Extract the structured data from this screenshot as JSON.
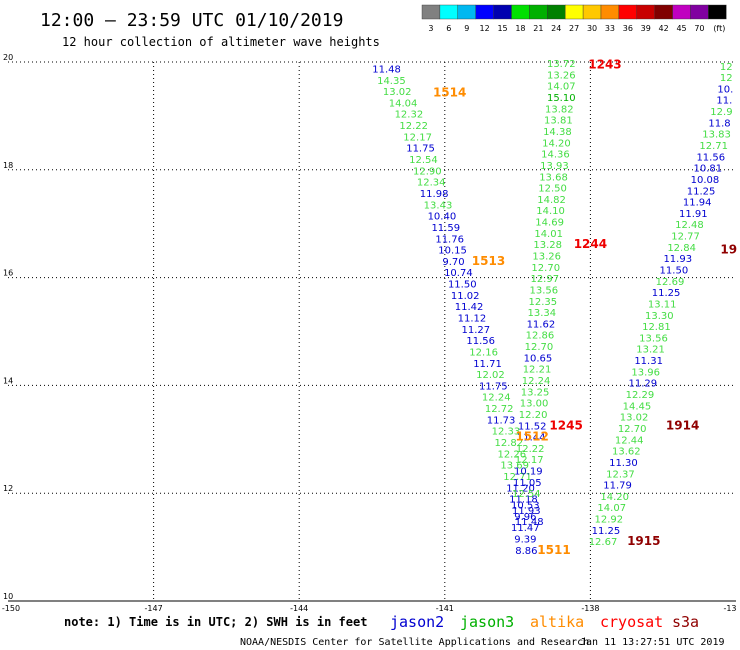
{
  "header": {
    "title": "12:00 – 23:59 UTC 01/10/2019",
    "subtitle": "12 hour collection of altimeter wave heights"
  },
  "legend": {
    "colors": [
      "#808080",
      "#00ffff",
      "#00b8f0",
      "#0000ff",
      "#0000b0",
      "#00e000",
      "#00b000",
      "#008000",
      "#ffff00",
      "#ffc800",
      "#ff8c00",
      "#ff0000",
      "#c80000",
      "#800000",
      "#c000c0",
      "#8000a0",
      "#000000"
    ],
    "labels": [
      "3",
      "6",
      "9",
      "12",
      "15",
      "18",
      "21",
      "24",
      "27",
      "30",
      "33",
      "36",
      "39",
      "42",
      "45",
      "70",
      "(ft)"
    ]
  },
  "axes": {
    "lon_labels": [
      "-150",
      "-147",
      "-144",
      "-141",
      "-138",
      "-13"
    ],
    "lat_labels": [
      "20",
      "18",
      "16",
      "14",
      "12",
      "10"
    ],
    "lon_min": -150,
    "lon_max": -135,
    "lat_min": 10,
    "lat_max": 20
  },
  "satellite_colors": {
    "jason2": "#0000d0",
    "jason3": "#00b000",
    "altika": "#ff8c00",
    "cryosat": "#ff0000",
    "s3a": "#900000",
    "light": "#44dd44",
    "pass_red": "#ee0000"
  },
  "observations": [
    {
      "text": "11.48",
      "lat": 19.88,
      "lon": -142.2,
      "c": "jason2"
    },
    {
      "text": "14.35",
      "lat": 19.67,
      "lon": -142.1,
      "c": "light"
    },
    {
      "text": "13.02",
      "lat": 19.46,
      "lon": -141.98,
      "c": "light"
    },
    {
      "text": "14.04",
      "lat": 19.25,
      "lon": -141.86,
      "c": "light"
    },
    {
      "text": "12.32",
      "lat": 19.04,
      "lon": -141.74,
      "c": "light"
    },
    {
      "text": "12.22",
      "lat": 18.83,
      "lon": -141.64,
      "c": "light"
    },
    {
      "text": "12.17",
      "lat": 18.62,
      "lon": -141.56,
      "c": "light"
    },
    {
      "text": "11.75",
      "lat": 18.41,
      "lon": -141.5,
      "c": "jason2"
    },
    {
      "text": "12.54",
      "lat": 18.2,
      "lon": -141.44,
      "c": "light"
    },
    {
      "text": "12.90",
      "lat": 17.99,
      "lon": -141.36,
      "c": "light"
    },
    {
      "text": "12.34",
      "lat": 17.78,
      "lon": -141.28,
      "c": "light"
    },
    {
      "text": "11.98",
      "lat": 17.57,
      "lon": -141.22,
      "c": "jason2"
    },
    {
      "text": "13.43",
      "lat": 17.36,
      "lon": -141.14,
      "c": "light"
    },
    {
      "text": "10.40",
      "lat": 17.15,
      "lon": -141.06,
      "c": "jason2"
    },
    {
      "text": "11.59",
      "lat": 16.94,
      "lon": -140.98,
      "c": "jason2"
    },
    {
      "text": "11.76",
      "lat": 16.73,
      "lon": -140.9,
      "c": "jason2"
    },
    {
      "text": "10.15",
      "lat": 16.52,
      "lon": -140.84,
      "c": "jason2"
    },
    {
      "text": "9.70",
      "lat": 16.31,
      "lon": -140.82,
      "c": "jason2"
    },
    {
      "text": "10.74",
      "lat": 16.1,
      "lon": -140.72,
      "c": "jason2"
    },
    {
      "text": "11.50",
      "lat": 15.89,
      "lon": -140.64,
      "c": "jason2"
    },
    {
      "text": "11.02",
      "lat": 15.68,
      "lon": -140.58,
      "c": "jason2"
    },
    {
      "text": "11.42",
      "lat": 15.47,
      "lon": -140.5,
      "c": "jason2"
    },
    {
      "text": "11.12",
      "lat": 15.26,
      "lon": -140.44,
      "c": "jason2"
    },
    {
      "text": "11.27",
      "lat": 15.05,
      "lon": -140.36,
      "c": "jason2"
    },
    {
      "text": "11.56",
      "lat": 14.84,
      "lon": -140.26,
      "c": "jason2"
    },
    {
      "text": "12.16",
      "lat": 14.63,
      "lon": -140.2,
      "c": "light"
    },
    {
      "text": "11.71",
      "lat": 14.42,
      "lon": -140.12,
      "c": "jason2"
    },
    {
      "text": "12.02",
      "lat": 14.21,
      "lon": -140.06,
      "c": "light"
    },
    {
      "text": "11.75",
      "lat": 14.0,
      "lon": -140.0,
      "c": "jason2"
    },
    {
      "text": "12.24",
      "lat": 13.79,
      "lon": -139.94,
      "c": "light"
    },
    {
      "text": "12.72",
      "lat": 13.58,
      "lon": -139.88,
      "c": "light"
    },
    {
      "text": "11.73",
      "lat": 13.37,
      "lon": -139.84,
      "c": "jason2"
    },
    {
      "text": "12.33",
      "lat": 13.16,
      "lon": -139.74,
      "c": "light"
    },
    {
      "text": "12.82",
      "lat": 12.95,
      "lon": -139.68,
      "c": "light"
    },
    {
      "text": "12.26",
      "lat": 12.74,
      "lon": -139.62,
      "c": "light"
    },
    {
      "text": "13.69",
      "lat": 12.53,
      "lon": -139.56,
      "c": "light"
    },
    {
      "text": "12.71",
      "lat": 12.32,
      "lon": -139.5,
      "c": "light"
    },
    {
      "text": "11.20",
      "lat": 12.11,
      "lon": -139.44,
      "c": "jason2"
    },
    {
      "text": "11.18",
      "lat": 11.9,
      "lon": -139.38,
      "c": "jason2"
    },
    {
      "text": "11.93",
      "lat": 11.69,
      "lon": -139.32,
      "c": "jason2"
    },
    {
      "text": "11.48",
      "lat": 11.48,
      "lon": -139.26,
      "c": "jason2"
    },
    {
      "text": "13.72",
      "lat": 19.98,
      "lon": -138.6,
      "c": "light"
    },
    {
      "text": "13.26",
      "lat": 19.77,
      "lon": -138.6,
      "c": "light"
    },
    {
      "text": "14.07",
      "lat": 19.56,
      "lon": -138.6,
      "c": "light"
    },
    {
      "text": "15.10",
      "lat": 19.35,
      "lon": -138.6,
      "c": "jason3"
    },
    {
      "text": "13.82",
      "lat": 19.14,
      "lon": -138.64,
      "c": "light"
    },
    {
      "text": "13.81",
      "lat": 18.93,
      "lon": -138.66,
      "c": "light"
    },
    {
      "text": "14.38",
      "lat": 18.72,
      "lon": -138.68,
      "c": "light"
    },
    {
      "text": "14.20",
      "lat": 18.51,
      "lon": -138.7,
      "c": "light"
    },
    {
      "text": "14.36",
      "lat": 18.3,
      "lon": -138.72,
      "c": "light"
    },
    {
      "text": "13.93",
      "lat": 18.09,
      "lon": -138.74,
      "c": "light"
    },
    {
      "text": "13.68",
      "lat": 17.88,
      "lon": -138.76,
      "c": "light"
    },
    {
      "text": "12.50",
      "lat": 17.67,
      "lon": -138.78,
      "c": "light"
    },
    {
      "text": "14.82",
      "lat": 17.46,
      "lon": -138.8,
      "c": "light"
    },
    {
      "text": "14.10",
      "lat": 17.25,
      "lon": -138.82,
      "c": "light"
    },
    {
      "text": "14.69",
      "lat": 17.04,
      "lon": -138.84,
      "c": "light"
    },
    {
      "text": "14.01",
      "lat": 16.83,
      "lon": -138.86,
      "c": "light"
    },
    {
      "text": "13.28",
      "lat": 16.62,
      "lon": -138.88,
      "c": "light"
    },
    {
      "text": "13.26",
      "lat": 16.41,
      "lon": -138.9,
      "c": "light"
    },
    {
      "text": "12.70",
      "lat": 16.2,
      "lon": -138.92,
      "c": "light"
    },
    {
      "text": "12.97",
      "lat": 15.99,
      "lon": -138.94,
      "c": "light"
    },
    {
      "text": "13.56",
      "lat": 15.78,
      "lon": -138.96,
      "c": "light"
    },
    {
      "text": "12.35",
      "lat": 15.57,
      "lon": -138.98,
      "c": "light"
    },
    {
      "text": "13.34",
      "lat": 15.36,
      "lon": -139.0,
      "c": "light"
    },
    {
      "text": "11.62",
      "lat": 15.15,
      "lon": -139.02,
      "c": "jason2"
    },
    {
      "text": "12.86",
      "lat": 14.94,
      "lon": -139.04,
      "c": "light"
    },
    {
      "text": "12.70",
      "lat": 14.73,
      "lon": -139.06,
      "c": "light"
    },
    {
      "text": "10.65",
      "lat": 14.52,
      "lon": -139.08,
      "c": "jason2"
    },
    {
      "text": "12.21",
      "lat": 14.31,
      "lon": -139.1,
      "c": "light"
    },
    {
      "text": "12.24",
      "lat": 14.1,
      "lon": -139.12,
      "c": "light"
    },
    {
      "text": "13.25",
      "lat": 13.89,
      "lon": -139.14,
      "c": "light"
    },
    {
      "text": "13.00",
      "lat": 13.68,
      "lon": -139.16,
      "c": "light"
    },
    {
      "text": "12.20",
      "lat": 13.47,
      "lon": -139.18,
      "c": "light"
    },
    {
      "text": "11.52",
      "lat": 13.26,
      "lon": -139.2,
      "c": "jason2"
    },
    {
      "text": "11.44",
      "lat": 13.05,
      "lon": -139.22,
      "c": "jason2"
    },
    {
      "text": "12.22",
      "lat": 12.84,
      "lon": -139.24,
      "c": "light"
    },
    {
      "text": "12.17",
      "lat": 12.63,
      "lon": -139.26,
      "c": "light"
    },
    {
      "text": "10.19",
      "lat": 12.42,
      "lon": -139.28,
      "c": "jason2"
    },
    {
      "text": "11.05",
      "lat": 12.21,
      "lon": -139.3,
      "c": "jason2"
    },
    {
      "text": "12.54",
      "lat": 12.0,
      "lon": -139.32,
      "c": "light"
    },
    {
      "text": "10.53",
      "lat": 11.79,
      "lon": -139.34,
      "c": "jason2"
    },
    {
      "text": "9.96",
      "lat": 11.58,
      "lon": -139.34,
      "c": "jason2"
    },
    {
      "text": "11.47",
      "lat": 11.37,
      "lon": -139.34,
      "c": "jason2"
    },
    {
      "text": "9.39",
      "lat": 11.16,
      "lon": -139.34,
      "c": "jason2"
    },
    {
      "text": "8.86",
      "lat": 10.95,
      "lon": -139.32,
      "c": "jason2"
    },
    {
      "text": "12",
      "lat": 19.93,
      "lon": -135.2,
      "c": "light"
    },
    {
      "text": "12",
      "lat": 19.72,
      "lon": -135.2,
      "c": "light"
    },
    {
      "text": "10.",
      "lat": 19.51,
      "lon": -135.22,
      "c": "jason2"
    },
    {
      "text": "11.",
      "lat": 19.3,
      "lon": -135.24,
      "c": "jason2"
    },
    {
      "text": "12.9",
      "lat": 19.09,
      "lon": -135.3,
      "c": "light"
    },
    {
      "text": "11.8",
      "lat": 18.88,
      "lon": -135.34,
      "c": "jason2"
    },
    {
      "text": "13.83",
      "lat": 18.67,
      "lon": -135.4,
      "c": "light"
    },
    {
      "text": "12.71",
      "lat": 18.46,
      "lon": -135.46,
      "c": "light"
    },
    {
      "text": "11.56",
      "lat": 18.25,
      "lon": -135.52,
      "c": "jason2"
    },
    {
      "text": "10.81",
      "lat": 18.04,
      "lon": -135.58,
      "c": "jason2"
    },
    {
      "text": "10.08",
      "lat": 17.83,
      "lon": -135.64,
      "c": "jason2"
    },
    {
      "text": "11.25",
      "lat": 17.62,
      "lon": -135.72,
      "c": "jason2"
    },
    {
      "text": "11.94",
      "lat": 17.41,
      "lon": -135.8,
      "c": "jason2"
    },
    {
      "text": "11.91",
      "lat": 17.2,
      "lon": -135.88,
      "c": "jason2"
    },
    {
      "text": "12.48",
      "lat": 16.99,
      "lon": -135.96,
      "c": "light"
    },
    {
      "text": "12.77",
      "lat": 16.78,
      "lon": -136.04,
      "c": "light"
    },
    {
      "text": "12.84",
      "lat": 16.57,
      "lon": -136.12,
      "c": "light"
    },
    {
      "text": "11.93",
      "lat": 16.36,
      "lon": -136.2,
      "c": "jason2"
    },
    {
      "text": "11.50",
      "lat": 16.15,
      "lon": -136.28,
      "c": "jason2"
    },
    {
      "text": "12.69",
      "lat": 15.94,
      "lon": -136.36,
      "c": "light"
    },
    {
      "text": "11.25",
      "lat": 15.73,
      "lon": -136.44,
      "c": "jason2"
    },
    {
      "text": "13.11",
      "lat": 15.52,
      "lon": -136.52,
      "c": "light"
    },
    {
      "text": "13.30",
      "lat": 15.31,
      "lon": -136.58,
      "c": "light"
    },
    {
      "text": "12.81",
      "lat": 15.1,
      "lon": -136.64,
      "c": "light"
    },
    {
      "text": "13.56",
      "lat": 14.89,
      "lon": -136.7,
      "c": "light"
    },
    {
      "text": "13.21",
      "lat": 14.68,
      "lon": -136.76,
      "c": "light"
    },
    {
      "text": "11.31",
      "lat": 14.47,
      "lon": -136.8,
      "c": "jason2"
    },
    {
      "text": "13.96",
      "lat": 14.26,
      "lon": -136.86,
      "c": "light"
    },
    {
      "text": "11.29",
      "lat": 14.05,
      "lon": -136.92,
      "c": "jason2"
    },
    {
      "text": "12.29",
      "lat": 13.84,
      "lon": -136.98,
      "c": "light"
    },
    {
      "text": "14.45",
      "lat": 13.63,
      "lon": -137.04,
      "c": "light"
    },
    {
      "text": "13.02",
      "lat": 13.42,
      "lon": -137.1,
      "c": "light"
    },
    {
      "text": "12.70",
      "lat": 13.21,
      "lon": -137.14,
      "c": "light"
    },
    {
      "text": "12.44",
      "lat": 13.0,
      "lon": -137.2,
      "c": "light"
    },
    {
      "text": "13.62",
      "lat": 12.79,
      "lon": -137.26,
      "c": "light"
    },
    {
      "text": "11.30",
      "lat": 12.58,
      "lon": -137.32,
      "c": "jason2"
    },
    {
      "text": "12.37",
      "lat": 12.37,
      "lon": -137.38,
      "c": "light"
    },
    {
      "text": "11.79",
      "lat": 12.16,
      "lon": -137.44,
      "c": "jason2"
    },
    {
      "text": "14.20",
      "lat": 11.95,
      "lon": -137.5,
      "c": "light"
    },
    {
      "text": "14.07",
      "lat": 11.74,
      "lon": -137.56,
      "c": "light"
    },
    {
      "text": "12.92",
      "lat": 11.53,
      "lon": -137.62,
      "c": "light"
    },
    {
      "text": "11.25",
      "lat": 11.32,
      "lon": -137.68,
      "c": "jason2"
    },
    {
      "text": "12.67",
      "lat": 11.11,
      "lon": -137.74,
      "c": "light"
    }
  ],
  "pass_labels": [
    {
      "text": "1243",
      "lat": 19.95,
      "lon": -137.7,
      "c": "pass_red"
    },
    {
      "text": "1514",
      "lat": 19.43,
      "lon": -140.9,
      "c": "altika"
    },
    {
      "text": "1244",
      "lat": 16.62,
      "lon": -138.0,
      "c": "pass_red"
    },
    {
      "text": "1513",
      "lat": 16.31,
      "lon": -140.1,
      "c": "altika"
    },
    {
      "text": "1245",
      "lat": 13.26,
      "lon": -138.5,
      "c": "pass_red"
    },
    {
      "text": "1512",
      "lat": 13.05,
      "lon": -139.2,
      "c": "altika"
    },
    {
      "text": "1914",
      "lat": 13.26,
      "lon": -136.1,
      "c": "s3a"
    },
    {
      "text": "1915",
      "lat": 11.11,
      "lon": -136.9,
      "c": "s3a"
    },
    {
      "text": "1511",
      "lat": 10.95,
      "lon": -138.75,
      "c": "altika"
    },
    {
      "text": "19",
      "lat": 16.52,
      "lon": -135.15,
      "c": "s3a"
    }
  ],
  "note": "note: 1) Time is in UTC; 2) SWH is in feet",
  "satellites": [
    {
      "name": "jason2",
      "c": "jason2"
    },
    {
      "name": "jason3",
      "c": "jason3"
    },
    {
      "name": "altika",
      "c": "altika"
    },
    {
      "name": "cryosat",
      "c": "cryosat"
    },
    {
      "name": "s3a",
      "c": "s3a"
    }
  ],
  "footer": {
    "source": "NOAA/NESDIS Center for Satellite Applications and Research",
    "timestamp": "Jan 11 13:27:51 UTC 2019"
  }
}
